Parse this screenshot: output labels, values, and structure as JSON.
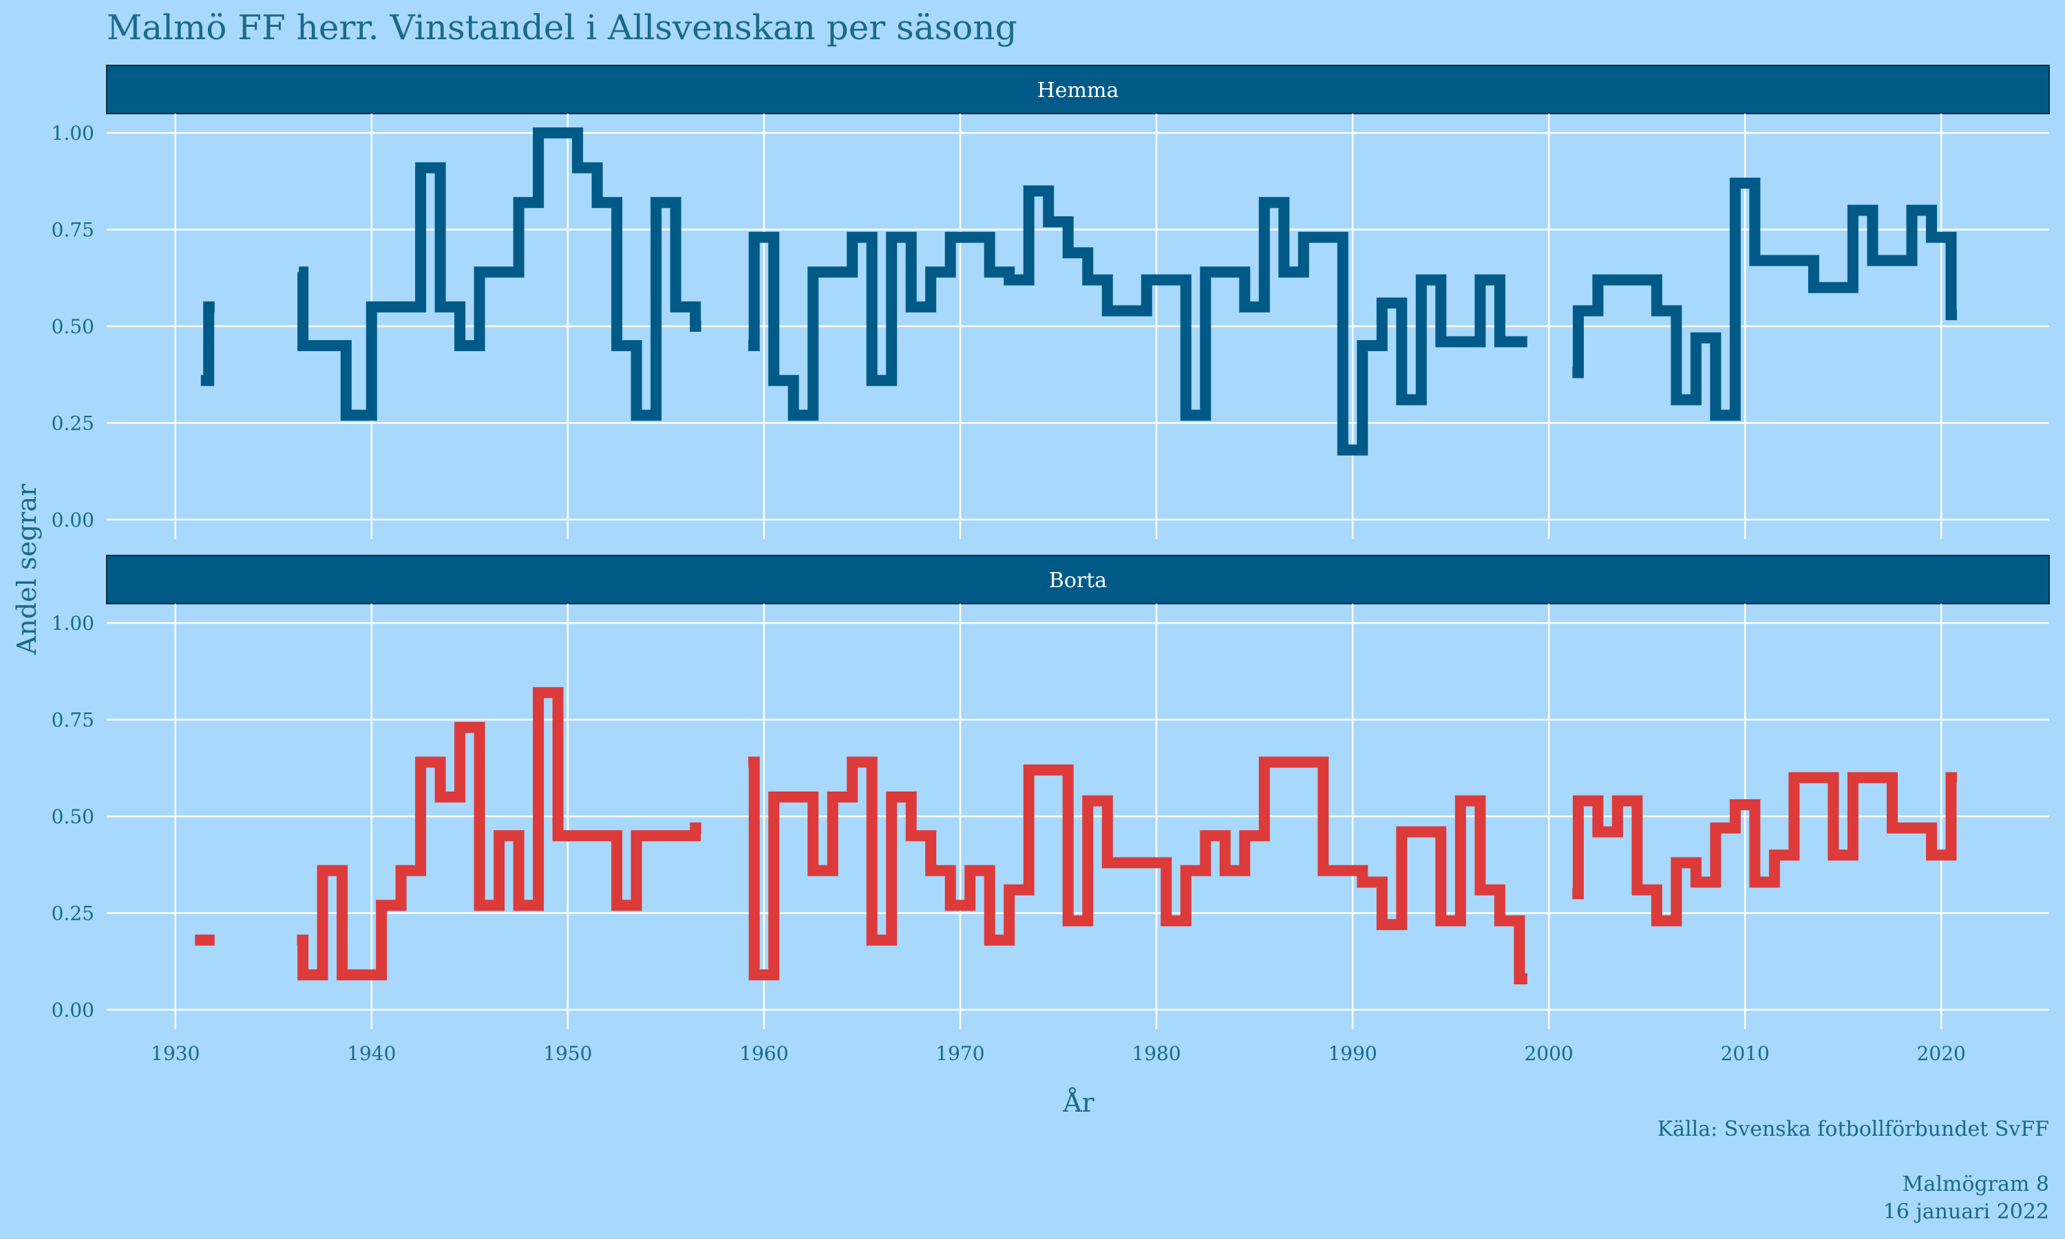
{
  "colors": {
    "background": "#a8d8fc",
    "text": "#1a6a8a",
    "strip": "#005a87",
    "strip_text": "#ffffff",
    "grid": "#ffffff",
    "hemma": "#005a87",
    "borta": "#dd3a3a"
  },
  "title": "Malmö FF herr. Vinstandel i Allsvenskan per säsong",
  "caption": {
    "source": "Källa: Svenska fotbollförbundet SvFF",
    "publisher": "Malmögram 8",
    "date": "16 januari 2022"
  },
  "chart_data": {
    "type": "line",
    "step": "hv",
    "xlabel": "År",
    "ylabel": "Andel segrar",
    "xlim": [
      1926.5,
      2025.5
    ],
    "ylim": [
      -0.05,
      1.05
    ],
    "x_ticks": [
      {
        "value": 1930,
        "label": "1930"
      },
      {
        "value": 1940,
        "label": "1940"
      },
      {
        "value": 1950,
        "label": "1950"
      },
      {
        "value": 1960,
        "label": "1960"
      },
      {
        "value": 1970,
        "label": "1970"
      },
      {
        "value": 1980,
        "label": "1980"
      },
      {
        "value": 1990,
        "label": "1990"
      },
      {
        "value": 2000,
        "label": "2000"
      },
      {
        "value": 2010,
        "label": "2010"
      },
      {
        "value": 2020,
        "label": "2020"
      }
    ],
    "y_ticks": [
      {
        "value": 0,
        "label": "0.00"
      },
      {
        "value": 0.25,
        "label": "0.25"
      },
      {
        "value": 0.5,
        "label": "0.50"
      },
      {
        "value": 0.75,
        "label": "0.75"
      },
      {
        "value": 1,
        "label": "1.00"
      }
    ],
    "grid": true,
    "facets": [
      {
        "name": "Hemma",
        "color_key": "hemma",
        "segments": [
          [
            [
              1931.3,
              0.36
            ],
            [
              1931.7,
              0.55
            ],
            [
              1932.0,
              0.55
            ]
          ],
          [
            [
              1936.3,
              0.64
            ],
            [
              1936.5,
              0.45
            ],
            [
              1938.7,
              0.27
            ],
            [
              1940.0,
              0.55
            ],
            [
              1942.5,
              0.91
            ],
            [
              1943.5,
              0.55
            ],
            [
              1944.5,
              0.45
            ],
            [
              1945.5,
              0.64
            ],
            [
              1947.5,
              0.82
            ],
            [
              1948.5,
              1.0
            ],
            [
              1950.5,
              0.91
            ],
            [
              1951.5,
              0.82
            ],
            [
              1952.5,
              0.45
            ],
            [
              1953.5,
              0.27
            ],
            [
              1954.5,
              0.82
            ],
            [
              1955.5,
              0.55
            ],
            [
              1956.5,
              0.5
            ],
            [
              1956.8,
              0.5
            ]
          ],
          [
            [
              1959.2,
              0.45
            ],
            [
              1959.5,
              0.73
            ],
            [
              1960.5,
              0.36
            ],
            [
              1961.5,
              0.27
            ],
            [
              1962.5,
              0.64
            ],
            [
              1964.5,
              0.73
            ],
            [
              1965.5,
              0.36
            ],
            [
              1966.5,
              0.73
            ],
            [
              1967.5,
              0.55
            ],
            [
              1968.5,
              0.64
            ],
            [
              1969.5,
              0.73
            ],
            [
              1971.5,
              0.64
            ],
            [
              1972.5,
              0.62
            ],
            [
              1973.5,
              0.85
            ],
            [
              1974.5,
              0.77
            ],
            [
              1975.5,
              0.69
            ],
            [
              1976.5,
              0.62
            ],
            [
              1977.5,
              0.54
            ],
            [
              1979.5,
              0.62
            ],
            [
              1981.5,
              0.27
            ],
            [
              1982.5,
              0.64
            ],
            [
              1984.5,
              0.55
            ],
            [
              1985.5,
              0.82
            ],
            [
              1986.5,
              0.64
            ],
            [
              1987.5,
              0.73
            ],
            [
              1989.5,
              0.18
            ],
            [
              1990.5,
              0.45
            ],
            [
              1991.5,
              0.56
            ],
            [
              1992.5,
              0.31
            ],
            [
              1993.5,
              0.62
            ],
            [
              1994.5,
              0.46
            ],
            [
              1996.5,
              0.62
            ],
            [
              1997.5,
              0.46
            ],
            [
              1998.5,
              0.46
            ],
            [
              1998.9,
              0.46
            ]
          ],
          [
            [
              2001.2,
              0.38
            ],
            [
              2001.5,
              0.54
            ],
            [
              2002.5,
              0.62
            ],
            [
              2005.5,
              0.54
            ],
            [
              2006.5,
              0.31
            ],
            [
              2007.5,
              0.47
            ],
            [
              2008.5,
              0.27
            ],
            [
              2009.5,
              0.87
            ],
            [
              2010.5,
              0.67
            ],
            [
              2013.5,
              0.6
            ],
            [
              2015.5,
              0.8
            ],
            [
              2016.5,
              0.67
            ],
            [
              2018.5,
              0.8
            ],
            [
              2019.5,
              0.73
            ],
            [
              2020.5,
              0.53
            ],
            [
              2020.8,
              0.53
            ]
          ]
        ]
      },
      {
        "name": "Borta",
        "color_key": "borta",
        "segments": [
          [
            [
              1931.0,
              0.18
            ],
            [
              1932.0,
              0.18
            ]
          ],
          [
            [
              1936.2,
              0.18
            ],
            [
              1936.5,
              0.09
            ],
            [
              1937.5,
              0.36
            ],
            [
              1938.5,
              0.09
            ],
            [
              1940.5,
              0.27
            ],
            [
              1941.5,
              0.36
            ],
            [
              1942.5,
              0.64
            ],
            [
              1943.5,
              0.55
            ],
            [
              1944.5,
              0.73
            ],
            [
              1945.5,
              0.27
            ],
            [
              1946.5,
              0.45
            ],
            [
              1947.5,
              0.27
            ],
            [
              1948.5,
              0.82
            ],
            [
              1949.5,
              0.45
            ],
            [
              1952.5,
              0.27
            ],
            [
              1953.5,
              0.45
            ],
            [
              1956.5,
              0.47
            ],
            [
              1956.8,
              0.47
            ]
          ],
          [
            [
              1959.2,
              0.64
            ],
            [
              1959.5,
              0.09
            ],
            [
              1960.5,
              0.55
            ],
            [
              1962.5,
              0.36
            ],
            [
              1963.5,
              0.55
            ],
            [
              1964.5,
              0.64
            ],
            [
              1965.5,
              0.18
            ],
            [
              1966.5,
              0.55
            ],
            [
              1967.5,
              0.45
            ],
            [
              1968.5,
              0.36
            ],
            [
              1969.5,
              0.27
            ],
            [
              1970.5,
              0.36
            ],
            [
              1971.5,
              0.18
            ],
            [
              1972.5,
              0.31
            ],
            [
              1973.5,
              0.62
            ],
            [
              1975.5,
              0.23
            ],
            [
              1976.5,
              0.54
            ],
            [
              1977.5,
              0.38
            ],
            [
              1980.5,
              0.23
            ],
            [
              1981.5,
              0.36
            ],
            [
              1982.5,
              0.45
            ],
            [
              1983.5,
              0.36
            ],
            [
              1984.5,
              0.45
            ],
            [
              1985.5,
              0.64
            ],
            [
              1988.5,
              0.36
            ],
            [
              1990.5,
              0.33
            ],
            [
              1991.5,
              0.22
            ],
            [
              1992.5,
              0.46
            ],
            [
              1994.5,
              0.23
            ],
            [
              1995.5,
              0.54
            ],
            [
              1996.5,
              0.31
            ],
            [
              1997.5,
              0.23
            ],
            [
              1998.5,
              0.08
            ],
            [
              1998.9,
              0.08
            ]
          ],
          [
            [
              2001.2,
              0.3
            ],
            [
              2001.5,
              0.54
            ],
            [
              2002.5,
              0.46
            ],
            [
              2003.5,
              0.54
            ],
            [
              2004.5,
              0.31
            ],
            [
              2005.5,
              0.23
            ],
            [
              2006.5,
              0.38
            ],
            [
              2007.5,
              0.33
            ],
            [
              2008.5,
              0.47
            ],
            [
              2009.5,
              0.53
            ],
            [
              2010.5,
              0.33
            ],
            [
              2011.5,
              0.4
            ],
            [
              2012.5,
              0.6
            ],
            [
              2014.5,
              0.4
            ],
            [
              2015.5,
              0.6
            ],
            [
              2017.5,
              0.47
            ],
            [
              2019.5,
              0.4
            ],
            [
              2020.5,
              0.6
            ],
            [
              2020.8,
              0.6
            ]
          ]
        ]
      }
    ]
  }
}
